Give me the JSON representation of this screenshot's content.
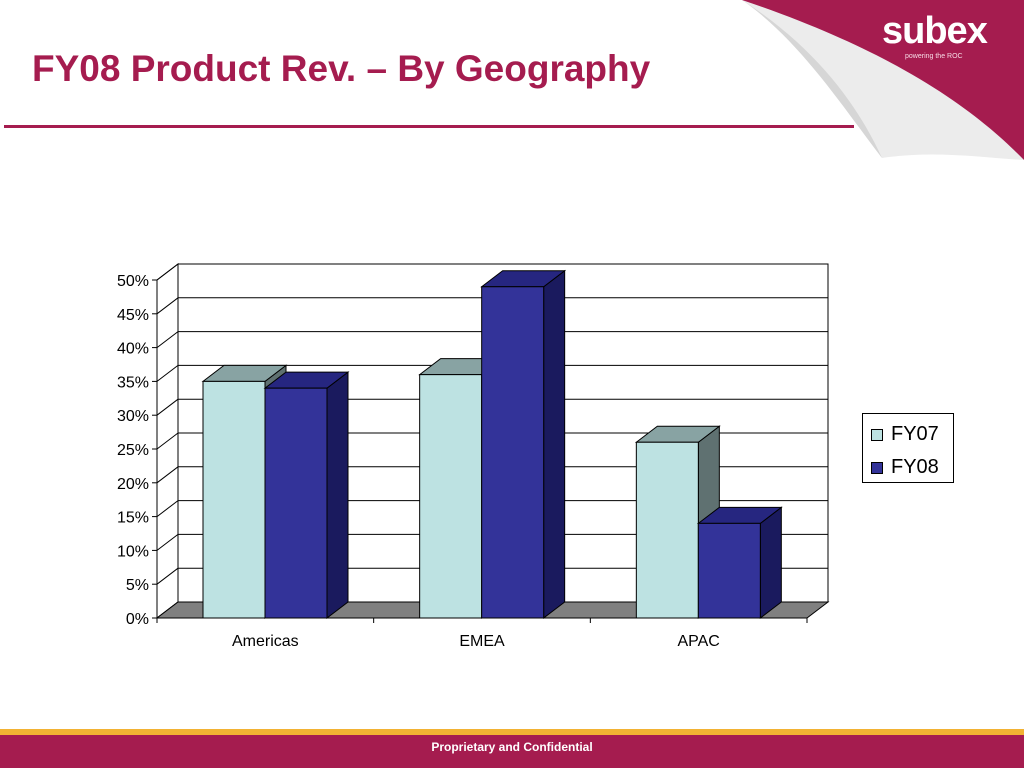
{
  "slide": {
    "title": "FY08 Product Rev. – By Geography",
    "footer": "Proprietary and Confidential"
  },
  "logo": {
    "text": "subex",
    "tagline": "powering the ROC"
  },
  "colors": {
    "brand": "#a51c4f",
    "footer_stripe": "#f2b233",
    "fy07_fill": "#bde2e2",
    "fy08_fill": "#333399"
  },
  "chart_data": {
    "type": "bar",
    "categories": [
      "Americas",
      "EMEA",
      "APAC"
    ],
    "series": [
      {
        "name": "FY07",
        "values": [
          35,
          36,
          26
        ]
      },
      {
        "name": "FY08",
        "values": [
          34,
          49,
          14
        ]
      }
    ],
    "ylim": [
      0,
      50
    ],
    "yticks": [
      "0%",
      "5%",
      "10%",
      "15%",
      "20%",
      "25%",
      "30%",
      "35%",
      "40%",
      "45%",
      "50%"
    ],
    "grid": true,
    "legend_position": "right",
    "style": "3d-clustered-column"
  }
}
